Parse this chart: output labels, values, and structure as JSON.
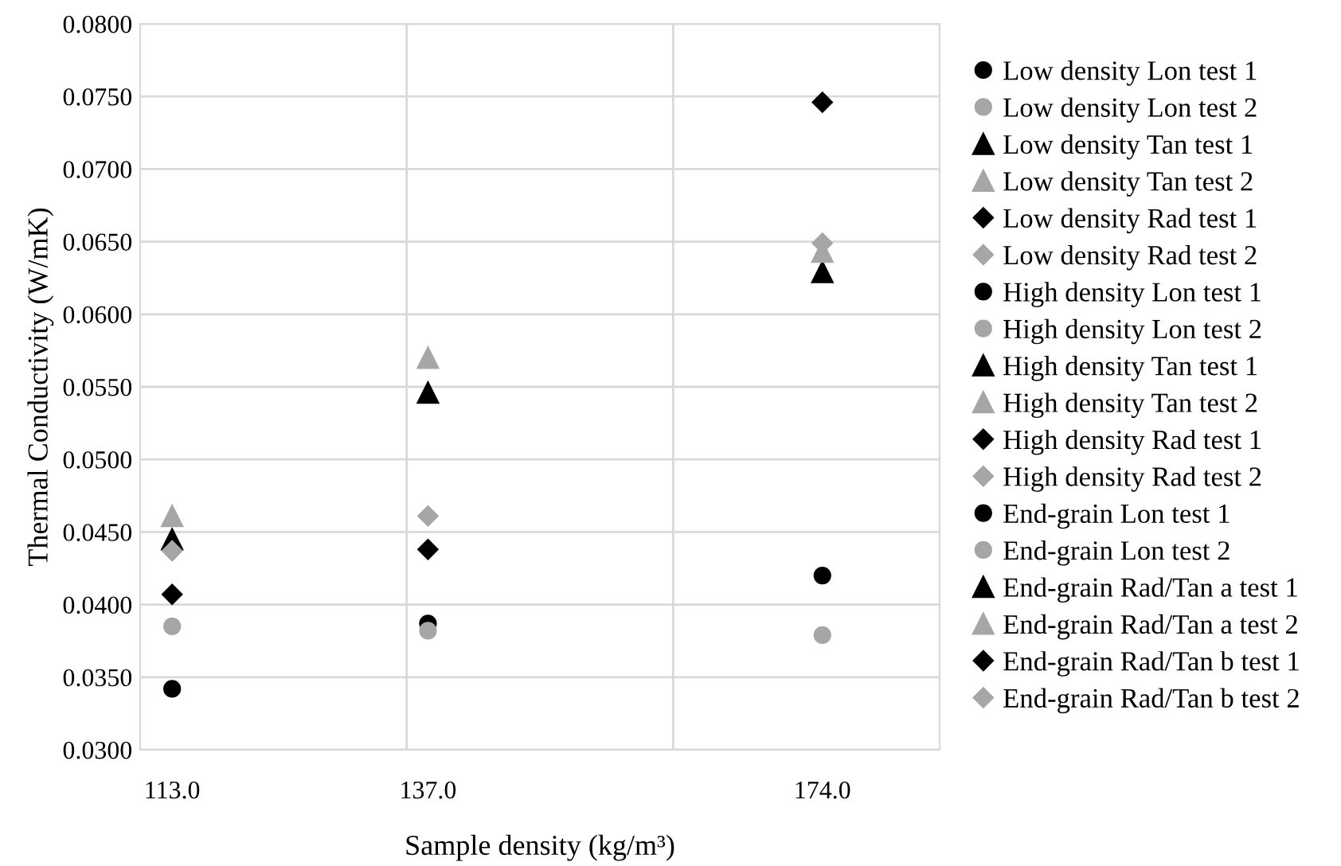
{
  "chart_data": {
    "type": "scatter",
    "xlabel": "Sample density (kg/m³)",
    "ylabel": "Thermal Conductivity (W/mK)",
    "xlim": [
      110,
      185
    ],
    "ylim": [
      0.03,
      0.08
    ],
    "xticks": [
      {
        "value": 113,
        "label": "113.0"
      },
      {
        "value": 135,
        "label": null
      },
      {
        "value": 137,
        "label": "137.0"
      },
      {
        "value": 160,
        "label": null
      },
      {
        "value": 174,
        "label": "174.0"
      }
    ],
    "yticks": [
      {
        "value": 0.03,
        "label": "0.0300"
      },
      {
        "value": 0.035,
        "label": "0.0350"
      },
      {
        "value": 0.04,
        "label": "0.0400"
      },
      {
        "value": 0.045,
        "label": "0.0450"
      },
      {
        "value": 0.05,
        "label": "0.0500"
      },
      {
        "value": 0.055,
        "label": "0.0550"
      },
      {
        "value": 0.06,
        "label": "0.0600"
      },
      {
        "value": 0.065,
        "label": "0.0650"
      },
      {
        "value": 0.07,
        "label": "0.0700"
      },
      {
        "value": 0.075,
        "label": "0.0750"
      },
      {
        "value": 0.08,
        "label": "0.0800"
      }
    ],
    "grid": true,
    "legend": "right",
    "series": [
      {
        "name": "Low density Lon test 1",
        "color": "#000000",
        "marker": "circle",
        "x": [
          113
        ],
        "values": [
          0.0342
        ]
      },
      {
        "name": "Low density Lon test 2",
        "color": "#a6a6a6",
        "marker": "circle",
        "x": [
          113
        ],
        "values": [
          0.0385
        ]
      },
      {
        "name": "Low density Tan test 1",
        "color": "#000000",
        "marker": "triangle",
        "x": [
          113
        ],
        "values": [
          0.0445
        ]
      },
      {
        "name": "Low density Tan test 2",
        "color": "#a6a6a6",
        "marker": "triangle",
        "x": [
          113
        ],
        "values": [
          0.0461
        ]
      },
      {
        "name": "Low density Rad test 1",
        "color": "#000000",
        "marker": "diamond",
        "x": [
          113
        ],
        "values": [
          0.0407
        ]
      },
      {
        "name": "Low density Rad test 2",
        "color": "#a6a6a6",
        "marker": "diamond",
        "x": [
          113
        ],
        "values": [
          0.0437
        ]
      },
      {
        "name": "High density Lon test 1",
        "color": "#000000",
        "marker": "circle",
        "x": [
          137
        ],
        "values": [
          0.0387
        ]
      },
      {
        "name": "High density Lon test 2",
        "color": "#a6a6a6",
        "marker": "circle",
        "x": [
          137
        ],
        "values": [
          0.0382
        ]
      },
      {
        "name": "High density Tan test 1",
        "color": "#000000",
        "marker": "triangle",
        "x": [
          137
        ],
        "values": [
          0.0546
        ]
      },
      {
        "name": "High density Tan test 2",
        "color": "#a6a6a6",
        "marker": "triangle",
        "x": [
          137
        ],
        "values": [
          0.057
        ]
      },
      {
        "name": "High density Rad test 1",
        "color": "#000000",
        "marker": "diamond",
        "x": [
          137
        ],
        "values": [
          0.0438
        ]
      },
      {
        "name": "High density Rad test 2",
        "color": "#a6a6a6",
        "marker": "diamond",
        "x": [
          137
        ],
        "values": [
          0.0461
        ]
      },
      {
        "name": "End-grain Lon test 1",
        "color": "#000000",
        "marker": "circle",
        "x": [
          174
        ],
        "values": [
          0.042
        ]
      },
      {
        "name": "End-grain Lon test 2",
        "color": "#a6a6a6",
        "marker": "circle",
        "x": [
          174
        ],
        "values": [
          0.0379
        ]
      },
      {
        "name": "End-grain Rad/Tan a test 1",
        "color": "#000000",
        "marker": "triangle",
        "x": [
          174
        ],
        "values": [
          0.0629
        ]
      },
      {
        "name": "End-grain Rad/Tan a test 2",
        "color": "#a6a6a6",
        "marker": "triangle",
        "x": [
          174
        ],
        "values": [
          0.0643
        ]
      },
      {
        "name": "End-grain Rad/Tan b test 1",
        "color": "#000000",
        "marker": "diamond",
        "x": [
          174
        ],
        "values": [
          0.0746
        ]
      },
      {
        "name": "End-grain Rad/Tan b test 2",
        "color": "#a6a6a6",
        "marker": "diamond",
        "x": [
          174
        ],
        "values": [
          0.0649
        ]
      }
    ]
  }
}
